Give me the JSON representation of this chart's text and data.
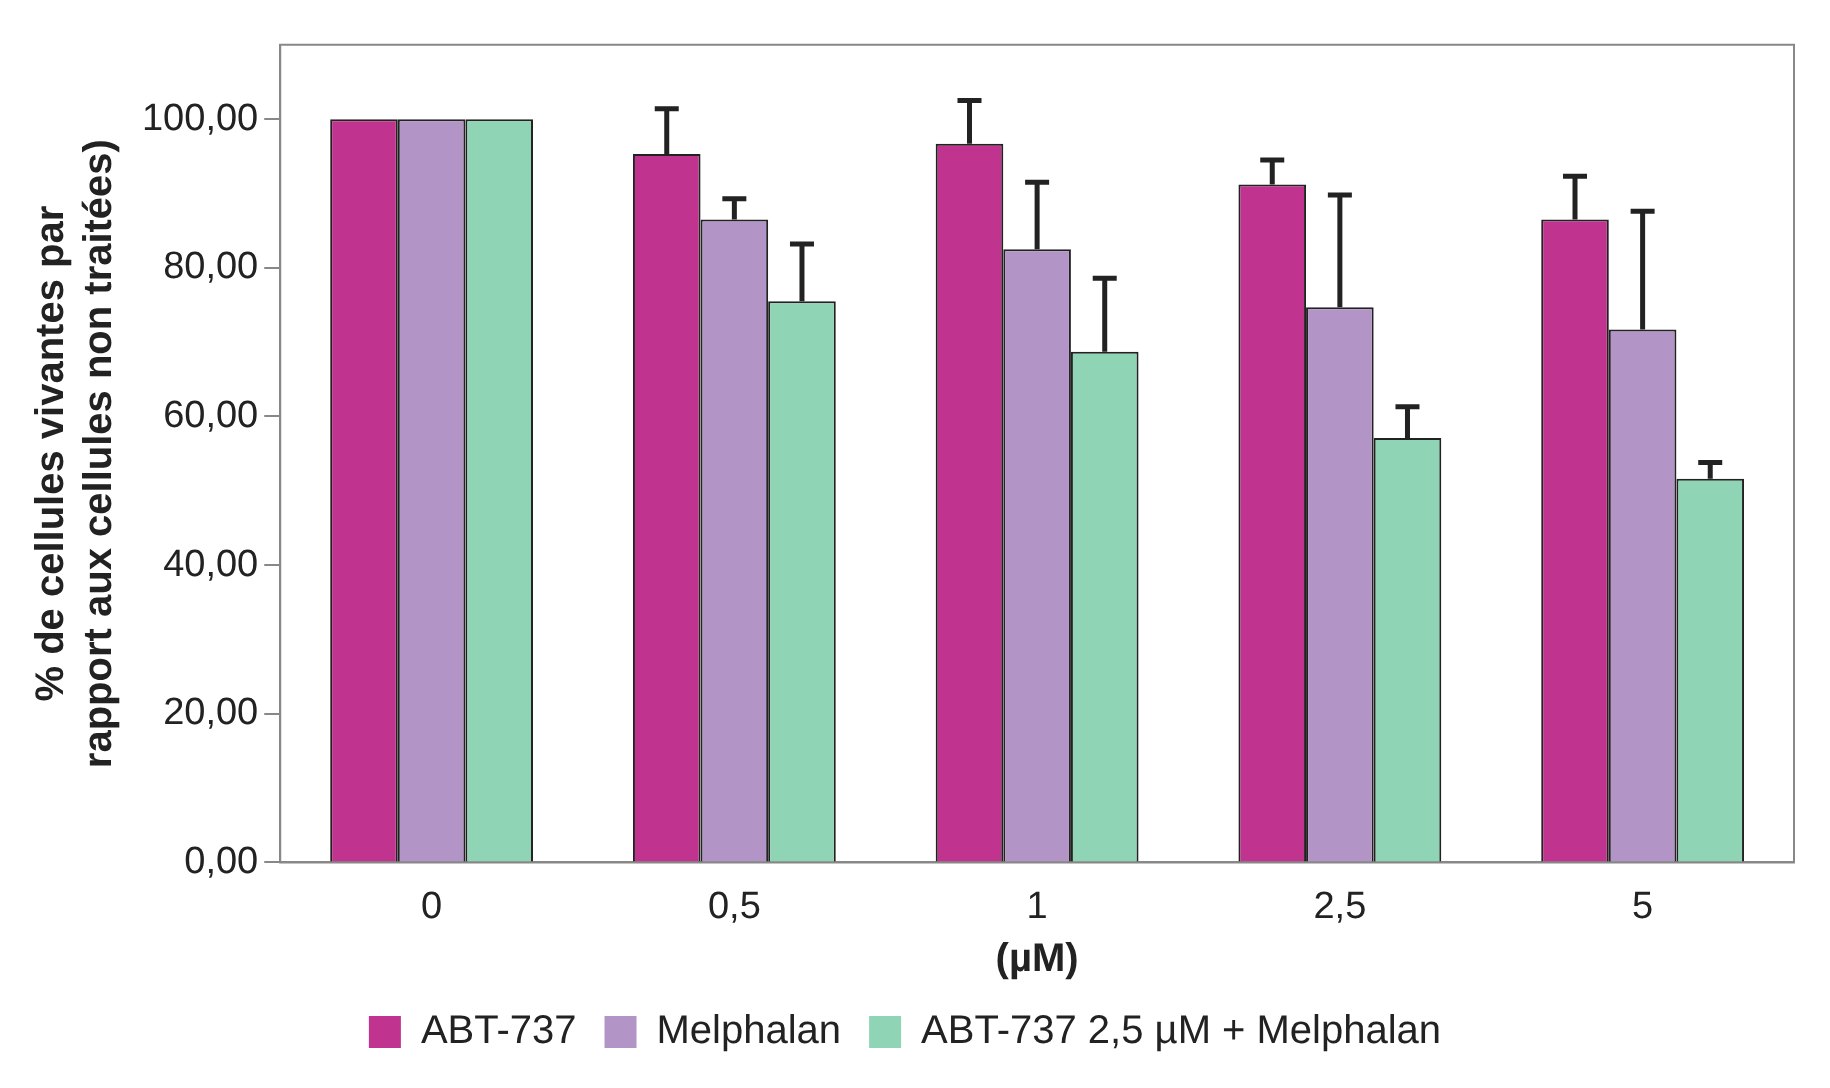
{
  "chart_data": {
    "type": "bar",
    "xlabel": "(µM)",
    "ylabel": "% de cellules vivantes par rapport aux cellules non traitées)",
    "categories": [
      "0",
      "0,5",
      "1",
      "2,5",
      "5"
    ],
    "series": [
      {
        "name": "ABT-737",
        "color": "#c0338f",
        "values": [
          100,
          95.3,
          96.7,
          91.2,
          86.5
        ],
        "errors": [
          null,
          [
            95.3,
            101.4
          ],
          [
            96.7,
            102.5
          ],
          [
            91.2,
            94.5
          ],
          [
            86.5,
            92.3
          ]
        ]
      },
      {
        "name": "Melphalan",
        "color": "#b294c7",
        "values": [
          100,
          86.5,
          82.5,
          74.7,
          71.7
        ],
        "errors": [
          null,
          [
            86.5,
            89.3
          ],
          [
            82.5,
            91.5
          ],
          [
            74.7,
            89.8
          ],
          [
            71.7,
            87.6
          ]
        ]
      },
      {
        "name": "ABT-737 2,5 µM + Melphalan",
        "color": "#8fd5b5",
        "values": [
          100,
          75.5,
          68.7,
          57.1,
          51.6
        ],
        "errors": [
          null,
          [
            75.5,
            83.2
          ],
          [
            68.7,
            78.6
          ],
          [
            57.1,
            61.3
          ],
          [
            51.6,
            53.8
          ]
        ]
      }
    ],
    "ylim": [
      0,
      110
    ],
    "yticks": [
      {
        "value": 0,
        "label": "0,00"
      },
      {
        "value": 20,
        "label": "20,00"
      },
      {
        "value": 40,
        "label": "40,00"
      },
      {
        "value": 60,
        "label": "60,00"
      },
      {
        "value": 80,
        "label": "80,00"
      },
      {
        "value": 100,
        "label": "100,00"
      }
    ],
    "grid": false,
    "legend": "bottom"
  }
}
